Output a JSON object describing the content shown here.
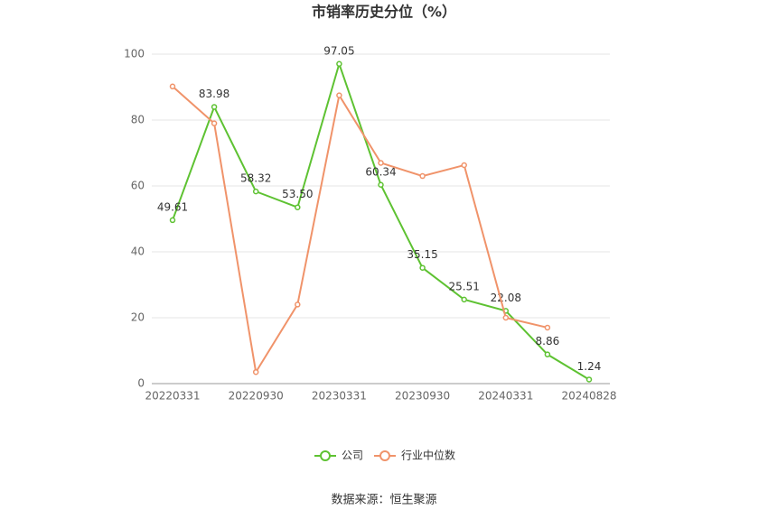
{
  "chart_data": {
    "type": "line",
    "title": "市销率历史分位（%）",
    "categories": [
      "20220331",
      null,
      "20220930",
      null,
      "20230331",
      null,
      "20230930",
      null,
      "20240331",
      null,
      "20240828"
    ],
    "series": [
      {
        "name": "公司",
        "color": "#5ec232",
        "values": [
          49.61,
          83.98,
          58.32,
          53.5,
          97.05,
          60.34,
          35.15,
          25.51,
          22.08,
          8.86,
          1.24
        ],
        "value_labels": [
          "49.61",
          "83.98",
          "58.32",
          "53.50",
          "97.05",
          "60.34",
          "35.15",
          "25.51",
          "22.08",
          "8.86",
          "1.24"
        ]
      },
      {
        "name": "行业中位数",
        "color": "#f0936a",
        "values": [
          90.2,
          79,
          3.5,
          24,
          87.5,
          67,
          63,
          66.3,
          20,
          17,
          null
        ]
      }
    ],
    "ylim": [
      0,
      100
    ],
    "yticks": [
      0,
      20,
      40,
      60,
      80,
      100
    ],
    "grid": true,
    "source": "数据来源：恒生聚源"
  }
}
